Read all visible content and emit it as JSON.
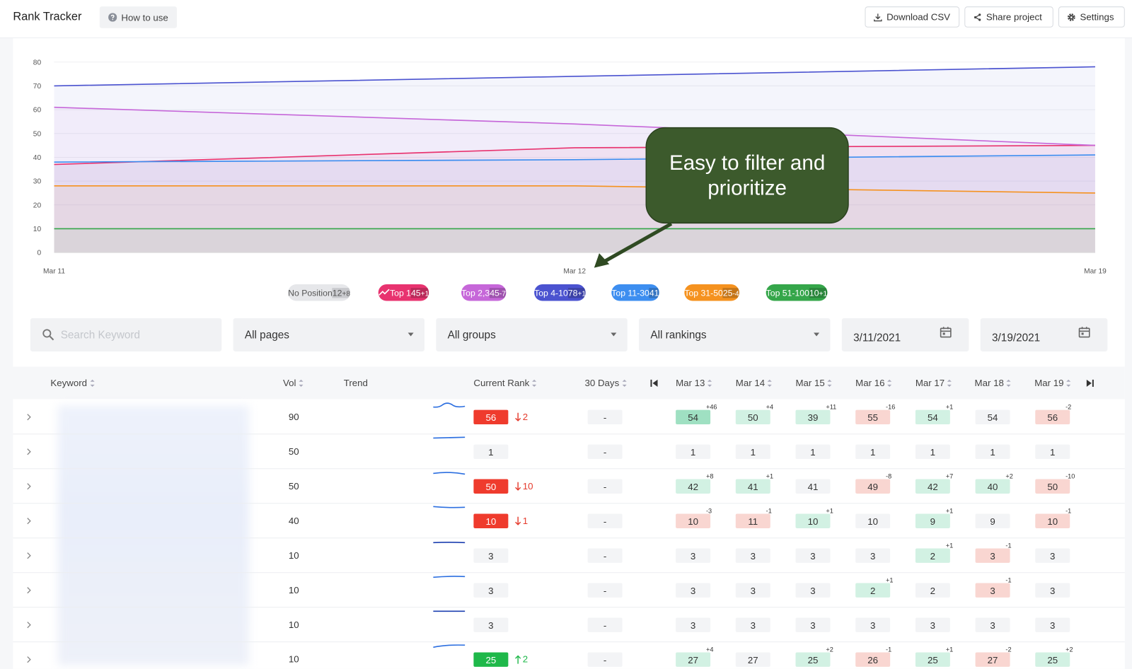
{
  "header": {
    "title": "Rank Tracker",
    "how_to_use": "How to use",
    "buttons": [
      "Download CSV",
      "Share project",
      "Settings"
    ]
  },
  "chart_data": {
    "type": "line",
    "categories": [
      "Mar 11",
      "Mar 12",
      "Mar 19"
    ],
    "ylim": [
      0,
      80
    ],
    "yticks": [
      0,
      10,
      20,
      30,
      40,
      50,
      60,
      70,
      80
    ],
    "series": [
      {
        "name": "Top 1",
        "color": "#e8336f",
        "values": [
          37,
          44,
          45
        ],
        "count": 45,
        "change": "+1"
      },
      {
        "name": "Top 2,3",
        "color": "#c667d9",
        "values": [
          61,
          54,
          45
        ],
        "count": 45,
        "change": "-7"
      },
      {
        "name": "Top 4-10",
        "color": "#4b53d0",
        "values": [
          70,
          74,
          78
        ],
        "count": 78,
        "change": "+1"
      },
      {
        "name": "Top 11-30",
        "color": "#3d8ef0",
        "values": [
          38,
          39,
          41
        ],
        "count": 41,
        "change": null
      },
      {
        "name": "Top 31-50",
        "color": "#f5921f",
        "values": [
          28,
          28,
          25
        ],
        "count": 25,
        "change": "-4"
      },
      {
        "name": "Top 51-100",
        "color": "#35a64a",
        "values": [
          10,
          10,
          10
        ],
        "count": 10,
        "change": "+1"
      }
    ],
    "no_position": {
      "name": "No Position",
      "count": 12,
      "change": "+8"
    },
    "annotation": "Easy to filter and prioritize"
  },
  "filters": {
    "search": "Search Keyword",
    "pages": "All pages",
    "groups": "All groups",
    "rankings": "All rankings",
    "date_from": "3/11/2021",
    "date_to": "3/19/2021"
  },
  "table": {
    "headers": [
      "Keyword",
      "Vol",
      "Trend",
      "Current Rank",
      "30 Days",
      "Mar 13",
      "Mar 14",
      "Mar 15",
      "Mar 16",
      "Mar 17",
      "Mar 18",
      "Mar 19"
    ],
    "rows": [
      {
        "vol": 90,
        "rank": 56,
        "change": {
          "direction": "down",
          "value": 2
        },
        "thirty_days": "-",
        "days": [
          {
            "value": 54,
            "delta": "+46"
          },
          {
            "value": 50,
            "delta": "+4"
          },
          {
            "value": 39,
            "delta": "+11"
          },
          {
            "value": 55,
            "delta": "-16"
          },
          {
            "value": 54,
            "delta": "+1"
          },
          {
            "value": 54,
            "delta": null
          },
          {
            "value": 56,
            "delta": "-2"
          }
        ]
      },
      {
        "vol": 50,
        "rank": 1,
        "change": null,
        "thirty_days": "-",
        "days": [
          {
            "value": 1,
            "delta": null
          },
          {
            "value": 1,
            "delta": null
          },
          {
            "value": 1,
            "delta": null
          },
          {
            "value": 1,
            "delta": null
          },
          {
            "value": 1,
            "delta": null
          },
          {
            "value": 1,
            "delta": null
          },
          {
            "value": 1,
            "delta": null
          }
        ]
      },
      {
        "vol": 50,
        "rank": 50,
        "change": {
          "direction": "down",
          "value": 10
        },
        "thirty_days": "-",
        "days": [
          {
            "value": 42,
            "delta": "+8"
          },
          {
            "value": 41,
            "delta": "+1"
          },
          {
            "value": 41,
            "delta": null
          },
          {
            "value": 49,
            "delta": "-8"
          },
          {
            "value": 42,
            "delta": "+7"
          },
          {
            "value": 40,
            "delta": "+2"
          },
          {
            "value": 50,
            "delta": "-10"
          }
        ]
      },
      {
        "vol": 40,
        "rank": 10,
        "change": {
          "direction": "down",
          "value": 1
        },
        "thirty_days": "-",
        "days": [
          {
            "value": 10,
            "delta": "-3"
          },
          {
            "value": 11,
            "delta": "-1"
          },
          {
            "value": 10,
            "delta": "+1"
          },
          {
            "value": 10,
            "delta": null
          },
          {
            "value": 9,
            "delta": "+1"
          },
          {
            "value": 9,
            "delta": null
          },
          {
            "value": 10,
            "delta": "-1"
          }
        ]
      },
      {
        "vol": 10,
        "rank": 3,
        "change": null,
        "thirty_days": "-",
        "days": [
          {
            "value": 3,
            "delta": null
          },
          {
            "value": 3,
            "delta": null
          },
          {
            "value": 3,
            "delta": null
          },
          {
            "value": 3,
            "delta": null
          },
          {
            "value": 2,
            "delta": "+1"
          },
          {
            "value": 3,
            "delta": "-1"
          },
          {
            "value": 3,
            "delta": null
          }
        ]
      },
      {
        "vol": 10,
        "rank": 3,
        "change": null,
        "thirty_days": "-",
        "days": [
          {
            "value": 3,
            "delta": null
          },
          {
            "value": 3,
            "delta": null
          },
          {
            "value": 3,
            "delta": null
          },
          {
            "value": 2,
            "delta": "+1"
          },
          {
            "value": 2,
            "delta": null
          },
          {
            "value": 3,
            "delta": "-1"
          },
          {
            "value": 3,
            "delta": null
          }
        ]
      },
      {
        "vol": 10,
        "rank": 3,
        "change": null,
        "thirty_days": "-",
        "days": [
          {
            "value": 3,
            "delta": null
          },
          {
            "value": 3,
            "delta": null
          },
          {
            "value": 3,
            "delta": null
          },
          {
            "value": 3,
            "delta": null
          },
          {
            "value": 3,
            "delta": null
          },
          {
            "value": 3,
            "delta": null
          },
          {
            "value": 3,
            "delta": null
          }
        ]
      },
      {
        "vol": 10,
        "rank": 25,
        "change": {
          "direction": "up",
          "value": 2
        },
        "thirty_days": "-",
        "days": [
          {
            "value": 27,
            "delta": "+4"
          },
          {
            "value": 27,
            "delta": null
          },
          {
            "value": 25,
            "delta": "+2"
          },
          {
            "value": 26,
            "delta": "-1"
          },
          {
            "value": 25,
            "delta": "+1"
          },
          {
            "value": 27,
            "delta": "-2"
          },
          {
            "value": 25,
            "delta": "+2"
          }
        ]
      }
    ]
  }
}
